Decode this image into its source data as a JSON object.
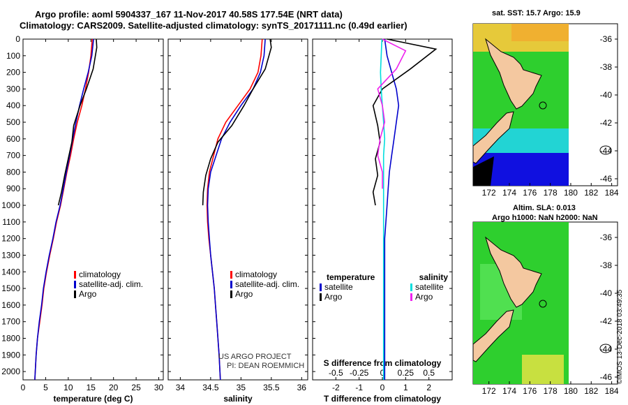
{
  "header": {
    "line1": "Argo profile: aoml 5904337_167 11-Nov-2017 40.58S 177.54E (NRT data)",
    "line2": "Climatology: CARS2009. Satellite-adjusted climatology: synTS_20171111.nc (0.49d earlier)"
  },
  "map_top": {
    "title": "sat. SST: 15.7 Argo: 15.9",
    "xticks": [
      "172",
      "174",
      "176",
      "178",
      "180",
      "182",
      "184"
    ],
    "yticks": [
      "-36",
      "-38",
      "-40",
      "-42",
      "-44",
      "-46"
    ]
  },
  "map_bottom": {
    "title1": "Altim. SLA: 0.013",
    "title2": "Argo h1000: NaN h2000: NaN",
    "xticks": [
      "172",
      "174",
      "176",
      "178",
      "180",
      "182",
      "184"
    ],
    "yticks": [
      "-36",
      "-38",
      "-40",
      "-42",
      "-44",
      "-46"
    ]
  },
  "credits": {
    "project": "US ARGO PROJECT",
    "pi": "PI: DEAN ROEMMICH",
    "imos": "©IMOS 13-Dec-2018 03:49:35"
  },
  "colors": {
    "climatology": "#ff0000",
    "satellite": "#0000cc",
    "argo": "#000000",
    "sat_salinity": "#00dddd",
    "argo_salinity": "#ee22ee"
  },
  "chart_data": [
    {
      "type": "line",
      "panel": "temperature",
      "xlabel": "temperature (deg C)",
      "xlim": [
        0,
        31
      ],
      "xticks": [
        0,
        5,
        10,
        15,
        20,
        25,
        30
      ],
      "ylim": [
        2050,
        0
      ],
      "yticks": [
        0,
        100,
        200,
        300,
        400,
        500,
        600,
        700,
        800,
        900,
        1000,
        1100,
        1200,
        1300,
        1400,
        1500,
        1600,
        1700,
        1800,
        1900,
        2000
      ],
      "legend": [
        "climatology",
        "satellite-adj. clim.",
        "Argo"
      ],
      "series": [
        {
          "name": "climatology",
          "color": "#ff0000",
          "x": [
            15.3,
            15.0,
            14.5,
            13.8,
            13.0,
            12.0,
            11.2,
            10.5,
            9.7,
            9.0,
            8.3,
            7.4,
            6.7,
            5.9,
            5.2,
            4.6,
            4.2,
            3.7,
            3.2,
            2.9,
            2.6
          ],
          "y": [
            0,
            100,
            200,
            300,
            400,
            500,
            600,
            700,
            800,
            900,
            1000,
            1100,
            1200,
            1300,
            1400,
            1500,
            1600,
            1700,
            1800,
            1900,
            2050
          ]
        },
        {
          "name": "satellite-adj. clim.",
          "color": "#0000cc",
          "x": [
            15.6,
            15.2,
            14.4,
            13.4,
            12.5,
            11.7,
            11.0,
            10.3,
            9.6,
            8.9,
            8.2,
            7.3,
            6.6,
            5.8,
            5.1,
            4.5,
            4.1,
            3.6,
            3.2,
            2.9,
            2.6
          ],
          "y": [
            0,
            100,
            200,
            300,
            400,
            500,
            600,
            700,
            800,
            900,
            1000,
            1100,
            1200,
            1300,
            1400,
            1500,
            1600,
            1700,
            1800,
            1900,
            2050
          ]
        },
        {
          "name": "Argo",
          "color": "#000000",
          "x": [
            16.2,
            16.3,
            15.5,
            14.0,
            12.6,
            11.2,
            10.8,
            10.0,
            9.2,
            8.5,
            7.8
          ],
          "y": [
            0,
            50,
            180,
            300,
            400,
            520,
            620,
            720,
            820,
            920,
            1000
          ]
        }
      ]
    },
    {
      "type": "line",
      "panel": "salinity",
      "xlabel": "salinity",
      "xlim": [
        33.8,
        36.1
      ],
      "xticks": [
        34,
        34.5,
        35,
        35.5,
        36
      ],
      "ylim": [
        2050,
        0
      ],
      "legend": [
        "climatology",
        "satellite-adj. clim.",
        "Argo"
      ],
      "series": [
        {
          "name": "climatology",
          "color": "#ff0000",
          "x": [
            35.35,
            35.33,
            35.28,
            35.15,
            34.95,
            34.75,
            34.62,
            34.55,
            34.48,
            34.45,
            34.44,
            34.45,
            34.47,
            34.5,
            34.53,
            34.56,
            34.58,
            34.6,
            34.62,
            34.64,
            34.66
          ],
          "y": [
            0,
            100,
            200,
            300,
            400,
            500,
            600,
            700,
            800,
            900,
            1000,
            1100,
            1200,
            1300,
            1400,
            1500,
            1600,
            1700,
            1800,
            1900,
            2050
          ]
        },
        {
          "name": "satellite-adj. clim.",
          "color": "#0000cc",
          "x": [
            35.4,
            35.38,
            35.32,
            35.2,
            35.0,
            34.82,
            34.68,
            34.59,
            34.5,
            34.46,
            34.45,
            34.46,
            34.48,
            34.5,
            34.53,
            34.56,
            34.58,
            34.6,
            34.62,
            34.64,
            34.66
          ],
          "y": [
            0,
            100,
            200,
            300,
            400,
            500,
            600,
            700,
            800,
            900,
            1000,
            1100,
            1200,
            1300,
            1400,
            1500,
            1600,
            1700,
            1800,
            1900,
            2050
          ]
        },
        {
          "name": "Argo",
          "color": "#000000",
          "x": [
            35.48,
            35.5,
            35.4,
            35.2,
            35.05,
            34.85,
            34.62,
            34.5,
            34.42,
            34.38,
            34.37
          ],
          "y": [
            0,
            50,
            180,
            300,
            400,
            520,
            620,
            720,
            820,
            920,
            1000
          ]
        }
      ]
    },
    {
      "type": "line",
      "panel": "differences",
      "xlabel": "T difference from climatology",
      "xlabel2": "S difference from climatology",
      "xlim": [
        -3,
        3
      ],
      "xticks": [
        -2,
        -1,
        0,
        1,
        2
      ],
      "xticks2": [
        "-0.5",
        "-0.25",
        "0",
        "0.25",
        "0.5"
      ],
      "ylim": [
        2050,
        0
      ],
      "legend_left_title": "temperature",
      "legend_right_title": "salinity",
      "legend_left": [
        "satellite",
        "Argo"
      ],
      "legend_right": [
        "satellite",
        "Argo"
      ],
      "series": [
        {
          "name": "temperature satellite",
          "color": "#0000cc",
          "x": [
            0.1,
            0.2,
            0.4,
            0.6,
            0.7,
            0.6,
            0.5,
            0.4,
            0.3,
            0.25,
            0.2,
            0.15,
            0.1,
            0.1,
            0.1,
            0.1,
            0.1,
            0.1,
            0.1,
            0.1,
            0.1
          ],
          "y": [
            0,
            100,
            200,
            300,
            400,
            500,
            600,
            700,
            800,
            900,
            1000,
            1100,
            1200,
            1300,
            1400,
            1500,
            1600,
            1700,
            1800,
            1900,
            2050
          ]
        },
        {
          "name": "temperature Argo",
          "color": "#000000",
          "x": [
            0.2,
            2.3,
            1.2,
            0.0,
            -0.4,
            -0.2,
            -0.1,
            -0.3,
            -0.2,
            -0.4,
            -0.3
          ],
          "y": [
            0,
            60,
            180,
            300,
            400,
            520,
            620,
            720,
            820,
            920,
            1000
          ]
        },
        {
          "name": "salinity satellite",
          "color": "#00dddd",
          "x": [
            -0.02,
            -0.05,
            -0.08,
            -0.05,
            0.0,
            0.05,
            0.1,
            0.05,
            0.05,
            0.05,
            0.05,
            0.05,
            0.05,
            0.05,
            0.05,
            0.05,
            0.05,
            0.05,
            0.05,
            0.05,
            0.05
          ],
          "y": [
            0,
            100,
            200,
            300,
            400,
            500,
            600,
            700,
            800,
            900,
            1000,
            1100,
            1200,
            1300,
            1400,
            1500,
            1600,
            1700,
            1800,
            1900,
            2050
          ]
        },
        {
          "name": "salinity Argo",
          "color": "#ee22ee",
          "x": [
            0.0,
            1.0,
            0.6,
            -0.2,
            0.0,
            0.1,
            -0.1,
            -0.2,
            0.0,
            0.0
          ],
          "y": [
            0,
            70,
            180,
            300,
            400,
            500,
            600,
            700,
            800,
            900
          ]
        }
      ]
    }
  ]
}
